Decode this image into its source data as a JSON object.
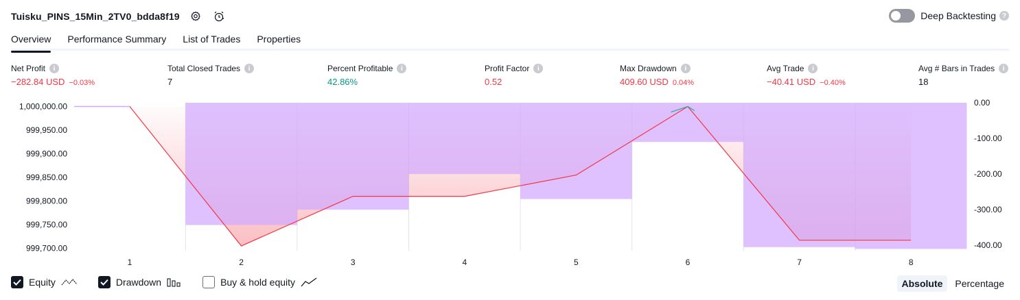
{
  "header": {
    "title": "Tuisku_PINS_15Min_2TV0_bdda8f19",
    "deep_backtesting_label": "Deep Backtesting"
  },
  "tabs": [
    {
      "label": "Overview",
      "active": true
    },
    {
      "label": "Performance Summary",
      "active": false
    },
    {
      "label": "List of Trades",
      "active": false
    },
    {
      "label": "Properties",
      "active": false
    }
  ],
  "metrics": {
    "net_profit": {
      "label": "Net Profit",
      "value": "−282.84 USD",
      "pct": "−0.03%"
    },
    "total_closed_trades": {
      "label": "Total Closed Trades",
      "value": "7"
    },
    "percent_profitable": {
      "label": "Percent Profitable",
      "value": "42.86%"
    },
    "profit_factor": {
      "label": "Profit Factor",
      "value": "0.52"
    },
    "max_drawdown": {
      "label": "Max Drawdown",
      "value": "409.60 USD",
      "pct": "0.04%"
    },
    "avg_trade": {
      "label": "Avg Trade",
      "value": "−40.41 USD",
      "pct": "−0.40%"
    },
    "avg_bars": {
      "label": "Avg # Bars in Trades",
      "value": "18"
    }
  },
  "legend": {
    "equity": {
      "label": "Equity",
      "checked": true
    },
    "drawdown": {
      "label": "Drawdown",
      "checked": true
    },
    "buy_hold": {
      "label": "Buy & hold equity",
      "checked": false
    }
  },
  "mode": {
    "absolute": "Absolute",
    "percentage": "Percentage",
    "selected": "Absolute"
  },
  "colors": {
    "equity_line": "#f23645",
    "drawdown_bar": "#d1a9fd",
    "positive_line": "#22ab94",
    "text": "#131722"
  },
  "chart_data": {
    "type": "area",
    "x_ticks": [
      "1",
      "2",
      "3",
      "4",
      "5",
      "6",
      "7",
      "8"
    ],
    "left_axis": {
      "ticks": [
        "1,000,000.00",
        "999,950.00",
        "999,900.00",
        "999,850.00",
        "999,800.00",
        "999,750.00",
        "999,700.00"
      ],
      "range": [
        999695,
        1000008
      ]
    },
    "right_axis": {
      "ticks": [
        "0.00",
        "-100.00",
        "-200.00",
        "-300.00",
        "-400.00"
      ],
      "range": [
        -415,
        0
      ]
    },
    "equity": {
      "name": "Equity",
      "x": [
        0.5,
        1,
        2,
        3,
        4,
        5,
        6,
        7,
        8
      ],
      "values": [
        1000000,
        1000000,
        999705,
        999810,
        999810,
        999855,
        1000000,
        999717.16,
        999717.16
      ]
    },
    "drawdown": {
      "name": "Drawdown",
      "bars": [
        {
          "x": 1,
          "value": 0
        },
        {
          "x": 2,
          "value": -343
        },
        {
          "x": 3,
          "value": -300
        },
        {
          "x": 4,
          "value": -200
        },
        {
          "x": 5,
          "value": -270
        },
        {
          "x": 6,
          "value": -110
        },
        {
          "x": 7,
          "value": -405
        },
        {
          "x": 8,
          "value": -410
        }
      ]
    }
  }
}
